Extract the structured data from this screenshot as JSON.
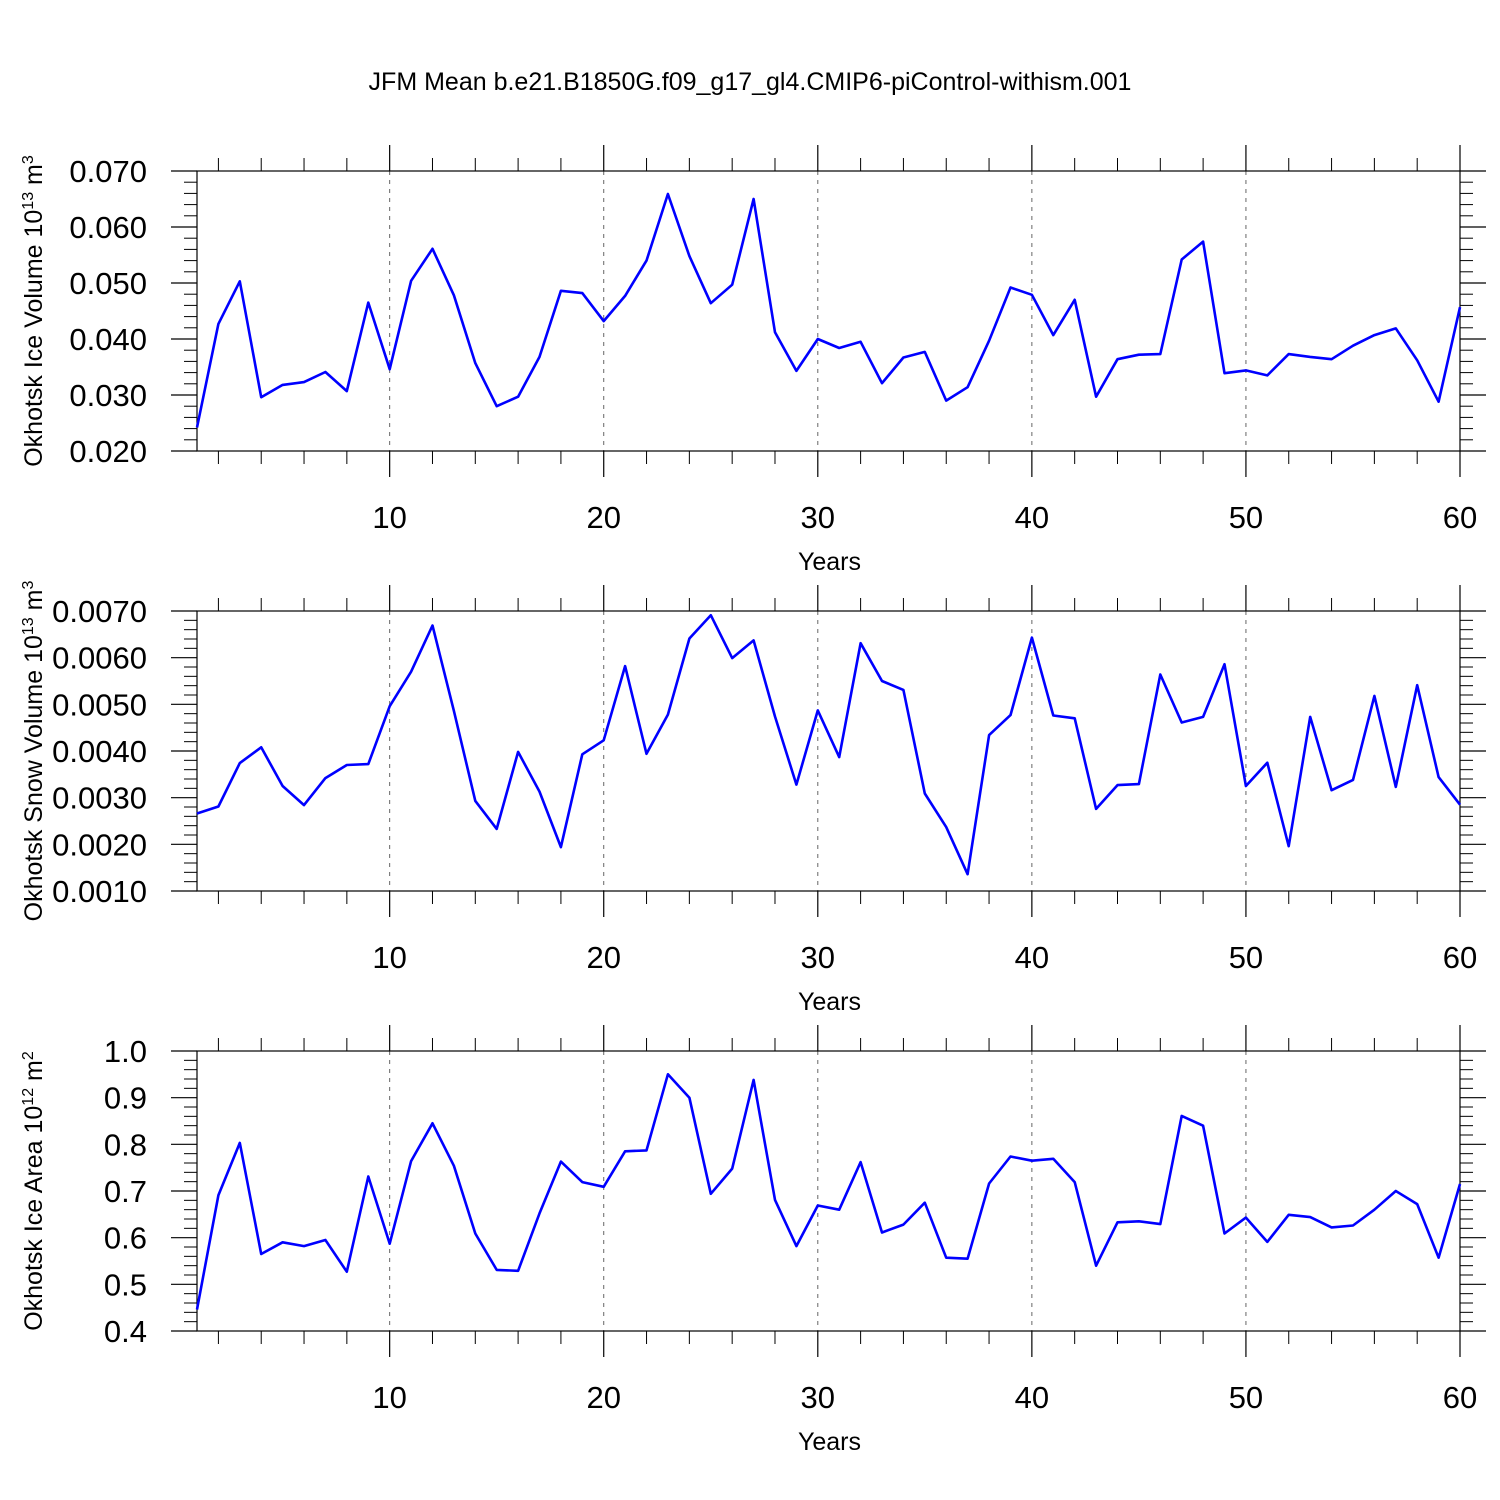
{
  "title": "JFM Mean b.e21.B1850G.f09_g17_gl4.CMIP6-piControl-withism.001",
  "colors": {
    "line": "#0000ff",
    "axis": "#000000",
    "grid": "#666666"
  },
  "chart_data": [
    {
      "type": "line",
      "name": "ice-volume",
      "ylabel_main": "Okhotsk Ice Volume 10",
      "ylabel_exp": "13",
      "ylabel_unit": "m",
      "ylabel_unit_exp": "3",
      "xlabel": "Years",
      "xlim": [
        1,
        60
      ],
      "ylim": [
        0.02,
        0.07
      ],
      "xticks": [
        10,
        20,
        30,
        40,
        50,
        60
      ],
      "xtick_labels": [
        "10",
        "20",
        "30",
        "40",
        "50",
        "60"
      ],
      "yticks": [
        0.02,
        0.03,
        0.04,
        0.05,
        0.06,
        0.07
      ],
      "ytick_labels": [
        "0.020",
        "0.030",
        "0.040",
        "0.050",
        "0.060",
        "0.070"
      ],
      "x": [
        1,
        2,
        3,
        4,
        5,
        6,
        7,
        8,
        9,
        10,
        11,
        12,
        13,
        14,
        15,
        16,
        17,
        18,
        19,
        20,
        21,
        22,
        23,
        24,
        25,
        26,
        27,
        28,
        29,
        30,
        31,
        32,
        33,
        34,
        35,
        36,
        37,
        38,
        39,
        40,
        41,
        42,
        43,
        44,
        45,
        46,
        47,
        48,
        49,
        50,
        51,
        52,
        53,
        54,
        55,
        56,
        57,
        58,
        59,
        60
      ],
      "values": [
        0.0242,
        0.0427,
        0.0503,
        0.0296,
        0.0318,
        0.0323,
        0.0341,
        0.0307,
        0.0465,
        0.0346,
        0.0504,
        0.0561,
        0.0478,
        0.0357,
        0.028,
        0.0297,
        0.0368,
        0.0486,
        0.0482,
        0.0432,
        0.0477,
        0.054,
        0.0659,
        0.0548,
        0.0464,
        0.0497,
        0.065,
        0.0412,
        0.0343,
        0.04,
        0.0384,
        0.0395,
        0.0321,
        0.0367,
        0.0377,
        0.029,
        0.0314,
        0.0397,
        0.0492,
        0.0479,
        0.0407,
        0.047,
        0.0297,
        0.0364,
        0.0372,
        0.0373,
        0.0542,
        0.0574,
        0.0339,
        0.0344,
        0.0335,
        0.0373,
        0.0368,
        0.0364,
        0.0388,
        0.0407,
        0.0419,
        0.0362,
        0.0288,
        0.0457
      ]
    },
    {
      "type": "line",
      "name": "snow-volume",
      "ylabel_main": "Okhotsk Snow Volume 10",
      "ylabel_exp": "13",
      "ylabel_unit": "m",
      "ylabel_unit_exp": "3",
      "xlabel": "Years",
      "xlim": [
        1,
        60
      ],
      "ylim": [
        0.001,
        0.007
      ],
      "xticks": [
        10,
        20,
        30,
        40,
        50,
        60
      ],
      "xtick_labels": [
        "10",
        "20",
        "30",
        "40",
        "50",
        "60"
      ],
      "yticks": [
        0.001,
        0.002,
        0.003,
        0.004,
        0.005,
        0.006,
        0.007
      ],
      "ytick_labels": [
        "0.0010",
        "0.0020",
        "0.0030",
        "0.0040",
        "0.0050",
        "0.0060",
        "0.0070"
      ],
      "x": [
        1,
        2,
        3,
        4,
        5,
        6,
        7,
        8,
        9,
        10,
        11,
        12,
        13,
        14,
        15,
        16,
        17,
        18,
        19,
        20,
        21,
        22,
        23,
        24,
        25,
        26,
        27,
        28,
        29,
        30,
        31,
        32,
        33,
        34,
        35,
        36,
        37,
        38,
        39,
        40,
        41,
        42,
        43,
        44,
        45,
        46,
        47,
        48,
        49,
        50,
        51,
        52,
        53,
        54,
        55,
        56,
        57,
        58,
        59,
        60
      ],
      "values": [
        0.00266,
        0.00281,
        0.00374,
        0.00408,
        0.00325,
        0.00284,
        0.00342,
        0.0037,
        0.00372,
        0.00496,
        0.0057,
        0.00669,
        0.00486,
        0.00293,
        0.00233,
        0.00398,
        0.00313,
        0.00194,
        0.00393,
        0.00423,
        0.00582,
        0.00394,
        0.00478,
        0.00641,
        0.00691,
        0.00599,
        0.00637,
        0.00474,
        0.00328,
        0.00487,
        0.00387,
        0.00631,
        0.0055,
        0.00531,
        0.00309,
        0.00237,
        0.00136,
        0.00434,
        0.00477,
        0.00643,
        0.00476,
        0.0047,
        0.00276,
        0.00327,
        0.00329,
        0.00564,
        0.00461,
        0.00473,
        0.00586,
        0.00325,
        0.00375,
        0.00196,
        0.00473,
        0.00316,
        0.00338,
        0.00518,
        0.00323,
        0.00541,
        0.00344,
        0.00285
      ]
    },
    {
      "type": "line",
      "name": "ice-area",
      "ylabel_main": "Okhotsk Ice Area 10",
      "ylabel_exp": "12",
      "ylabel_unit": "m",
      "ylabel_unit_exp": "2",
      "xlabel": "Years",
      "xlim": [
        1,
        60
      ],
      "ylim": [
        0.4,
        1.0
      ],
      "xticks": [
        10,
        20,
        30,
        40,
        50,
        60
      ],
      "xtick_labels": [
        "10",
        "20",
        "30",
        "40",
        "50",
        "60"
      ],
      "yticks": [
        0.4,
        0.5,
        0.6,
        0.7,
        0.8,
        0.9,
        1.0
      ],
      "ytick_labels": [
        "0.4",
        "0.5",
        "0.6",
        "0.7",
        "0.8",
        "0.9",
        "1.0"
      ],
      "x": [
        1,
        2,
        3,
        4,
        5,
        6,
        7,
        8,
        9,
        10,
        11,
        12,
        13,
        14,
        15,
        16,
        17,
        18,
        19,
        20,
        21,
        22,
        23,
        24,
        25,
        26,
        27,
        28,
        29,
        30,
        31,
        32,
        33,
        34,
        35,
        36,
        37,
        38,
        39,
        40,
        41,
        42,
        43,
        44,
        45,
        46,
        47,
        48,
        49,
        50,
        51,
        52,
        53,
        54,
        55,
        56,
        57,
        58,
        59,
        60
      ],
      "values": [
        0.446,
        0.691,
        0.803,
        0.565,
        0.59,
        0.582,
        0.595,
        0.527,
        0.731,
        0.587,
        0.764,
        0.845,
        0.754,
        0.609,
        0.531,
        0.529,
        0.652,
        0.763,
        0.719,
        0.709,
        0.785,
        0.787,
        0.95,
        0.9,
        0.694,
        0.748,
        0.938,
        0.681,
        0.582,
        0.669,
        0.66,
        0.762,
        0.611,
        0.628,
        0.675,
        0.557,
        0.555,
        0.716,
        0.774,
        0.765,
        0.769,
        0.719,
        0.54,
        0.633,
        0.635,
        0.629,
        0.861,
        0.84,
        0.609,
        0.643,
        0.591,
        0.649,
        0.644,
        0.622,
        0.626,
        0.66,
        0.7,
        0.672,
        0.557,
        0.715
      ]
    }
  ]
}
